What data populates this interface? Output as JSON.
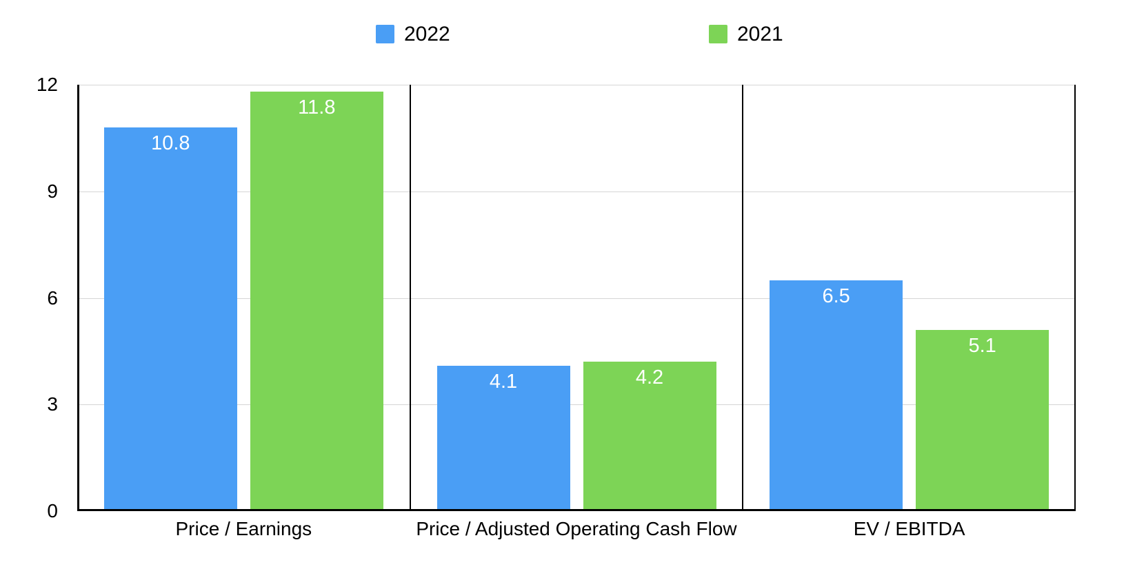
{
  "chart_data": {
    "type": "bar",
    "categories": [
      "Price / Earnings",
      "Price / Adjusted Operating Cash Flow",
      "EV / EBITDA"
    ],
    "series": [
      {
        "name": "2022",
        "color": "#4A9EF5",
        "values": [
          10.8,
          4.1,
          6.5
        ]
      },
      {
        "name": "2021",
        "color": "#7DD456",
        "values": [
          11.8,
          4.2,
          5.1
        ]
      }
    ],
    "ylim": [
      0,
      12
    ],
    "yticks": [
      0,
      3,
      6,
      9,
      12
    ],
    "grid": true,
    "legend_position": "top",
    "value_labels_shown": true,
    "value_label_color": "#ffffff",
    "axis_color": "#000000",
    "gridline_color": "#d5d5d5"
  }
}
